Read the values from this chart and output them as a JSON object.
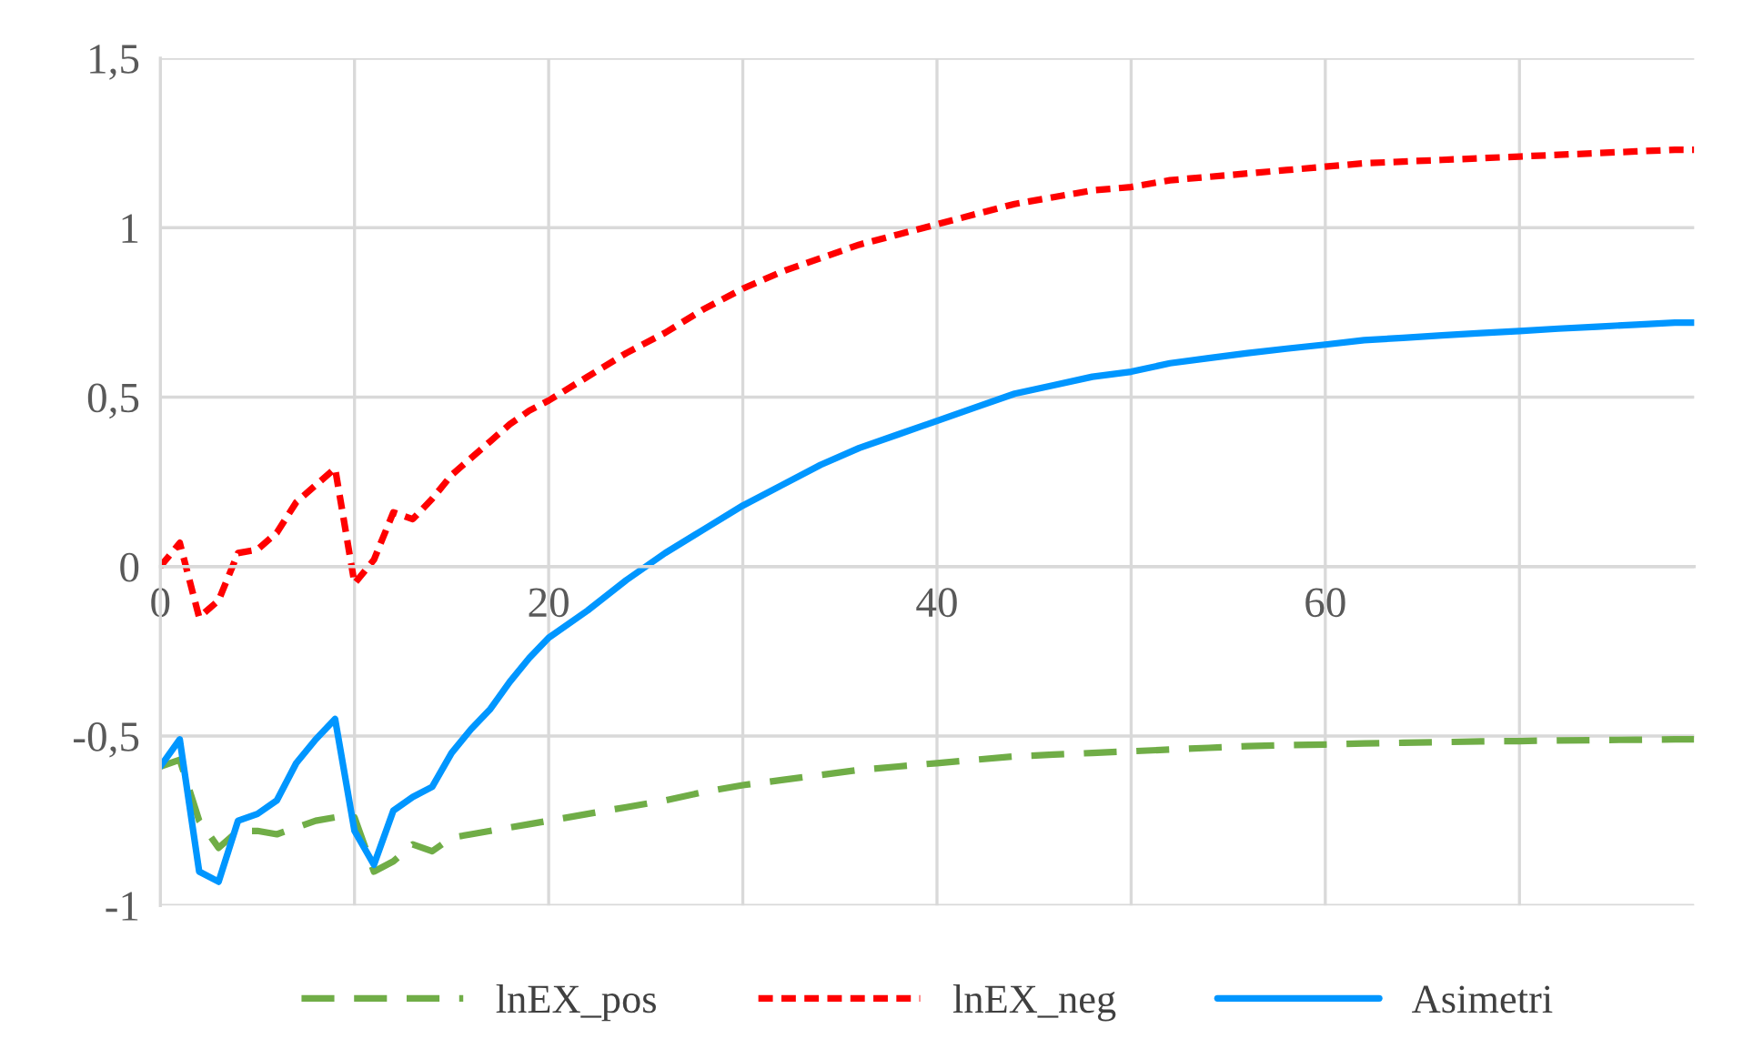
{
  "chart_data": {
    "type": "line",
    "x": [
      0,
      1,
      2,
      3,
      4,
      5,
      6,
      7,
      8,
      9,
      10,
      11,
      12,
      13,
      14,
      15,
      16,
      17,
      18,
      19,
      20,
      22,
      24,
      26,
      28,
      30,
      32,
      34,
      36,
      38,
      40,
      42,
      44,
      46,
      48,
      50,
      52,
      54,
      56,
      58,
      60,
      62,
      64,
      66,
      68,
      70,
      72,
      74,
      76,
      78,
      79
    ],
    "series": [
      {
        "name": "lnEX_pos",
        "color": "#70ad47",
        "line_style": "dashed",
        "values": [
          -0.59,
          -0.57,
          -0.75,
          -0.83,
          -0.78,
          -0.78,
          -0.79,
          -0.77,
          -0.75,
          -0.74,
          -0.74,
          -0.9,
          -0.87,
          -0.82,
          -0.84,
          -0.8,
          -0.79,
          -0.78,
          -0.77,
          -0.76,
          -0.75,
          -0.73,
          -0.71,
          -0.69,
          -0.665,
          -0.645,
          -0.63,
          -0.615,
          -0.6,
          -0.59,
          -0.58,
          -0.57,
          -0.56,
          -0.555,
          -0.55,
          -0.545,
          -0.54,
          -0.535,
          -0.53,
          -0.527,
          -0.525,
          -0.522,
          -0.52,
          -0.518,
          -0.516,
          -0.515,
          -0.513,
          -0.512,
          -0.511,
          -0.51,
          -0.51
        ]
      },
      {
        "name": "lnEX_neg",
        "color": "#ff0000",
        "line_style": "dotted",
        "values": [
          0,
          0.07,
          -0.15,
          -0.1,
          0.04,
          0.05,
          0.1,
          0.19,
          0.24,
          0.29,
          -0.05,
          0.02,
          0.16,
          0.14,
          0.2,
          0.27,
          0.32,
          0.37,
          0.42,
          0.46,
          0.49,
          0.56,
          0.63,
          0.69,
          0.76,
          0.82,
          0.87,
          0.91,
          0.95,
          0.98,
          1.01,
          1.04,
          1.07,
          1.09,
          1.11,
          1.12,
          1.14,
          1.15,
          1.16,
          1.17,
          1.18,
          1.19,
          1.195,
          1.2,
          1.205,
          1.21,
          1.215,
          1.22,
          1.225,
          1.23,
          1.23
        ]
      },
      {
        "name": "Asimetri",
        "color": "#0096ff",
        "line_style": "solid",
        "values": [
          -0.59,
          -0.51,
          -0.9,
          -0.93,
          -0.75,
          -0.73,
          -0.69,
          -0.58,
          -0.51,
          -0.45,
          -0.78,
          -0.88,
          -0.72,
          -0.68,
          -0.65,
          -0.55,
          -0.48,
          -0.42,
          -0.34,
          -0.27,
          -0.21,
          -0.13,
          -0.04,
          0.04,
          0.11,
          0.18,
          0.24,
          0.3,
          0.35,
          0.39,
          0.43,
          0.47,
          0.51,
          0.535,
          0.56,
          0.575,
          0.6,
          0.615,
          0.63,
          0.643,
          0.655,
          0.668,
          0.675,
          0.682,
          0.689,
          0.695,
          0.702,
          0.708,
          0.714,
          0.72,
          0.72
        ]
      }
    ],
    "xlim": [
      0,
      79
    ],
    "xticks": [
      0,
      {
        "value": 10,
        "label": null
      },
      20,
      {
        "value": 30,
        "label": null
      },
      40,
      {
        "value": 50,
        "label": null
      },
      60,
      {
        "value": 70,
        "label": null
      }
    ],
    "ylim": [
      -1,
      1.5
    ],
    "yticks": [
      {
        "value": -1,
        "label": "-1"
      },
      {
        "value": -0.5,
        "label": "-0,5"
      },
      0,
      {
        "value": 0.5,
        "label": "0,5"
      },
      1,
      {
        "value": 1.5,
        "label": "1,5"
      }
    ],
    "grid": true,
    "legend": "bottom"
  }
}
